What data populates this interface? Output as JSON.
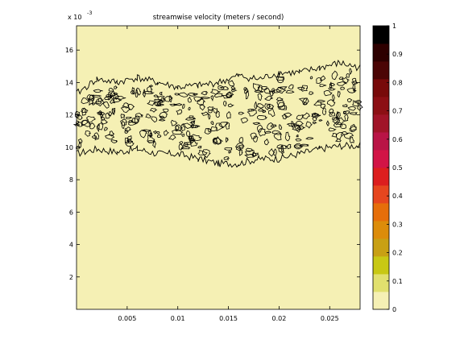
{
  "chart_data": {
    "type": "contour",
    "title": "streamwise velocity  (meters / second)",
    "xlabel": "",
    "ylabel": "",
    "xlim": [
      0,
      0.028
    ],
    "ylim": [
      0,
      17.5
    ],
    "y_multiplier_label": "x 10",
    "y_multiplier_exponent": "-3",
    "x_ticks": [
      {
        "value": 0.005,
        "label": "0.005"
      },
      {
        "value": 0.01,
        "label": "0.01"
      },
      {
        "value": 0.015,
        "label": "0.015"
      },
      {
        "value": 0.02,
        "label": "0.02"
      },
      {
        "value": 0.025,
        "label": "0.025"
      }
    ],
    "y_ticks": [
      {
        "value": 2,
        "label": "2"
      },
      {
        "value": 4,
        "label": "4"
      },
      {
        "value": 6,
        "label": "6"
      },
      {
        "value": 8,
        "label": "8"
      },
      {
        "value": 10,
        "label": "10"
      },
      {
        "value": 12,
        "label": "12"
      },
      {
        "value": 14,
        "label": "14"
      },
      {
        "value": 16,
        "label": "16"
      }
    ],
    "background_color": "#f5f0b4",
    "contour_color": "#000000",
    "band": {
      "x": [
        0,
        0.002,
        0.004,
        0.006,
        0.008,
        0.01,
        0.012,
        0.014,
        0.016,
        0.018,
        0.02,
        0.022,
        0.024,
        0.026,
        0.028
      ],
      "lower": [
        9.6,
        9.9,
        9.7,
        9.9,
        9.6,
        9.6,
        9.3,
        9.0,
        9.0,
        9.3,
        9.3,
        9.6,
        9.9,
        10.1,
        10.1
      ],
      "upper": [
        13.3,
        14.2,
        14.0,
        14.3,
        14.0,
        13.7,
        13.8,
        14.0,
        14.4,
        14.2,
        14.6,
        14.6,
        14.9,
        15.2,
        14.9
      ]
    },
    "colorbar": {
      "min": 0,
      "max": 1,
      "ticks": [
        {
          "value": 0,
          "label": "0"
        },
        {
          "value": 0.1,
          "label": "0.1"
        },
        {
          "value": 0.2,
          "label": "0.2"
        },
        {
          "value": 0.3,
          "label": "0.3"
        },
        {
          "value": 0.4,
          "label": "0.4"
        },
        {
          "value": 0.5,
          "label": "0.5"
        },
        {
          "value": 0.6,
          "label": "0.6"
        },
        {
          "value": 0.7,
          "label": "0.7"
        },
        {
          "value": 0.8,
          "label": "0.8"
        },
        {
          "value": 0.9,
          "label": "0.9"
        },
        {
          "value": 1,
          "label": "1"
        }
      ],
      "colors": [
        "#f5f0b4",
        "#e1e06e",
        "#c8c814",
        "#c8a014",
        "#dc8c0a",
        "#e66e0a",
        "#e6461e",
        "#dc1e1e",
        "#d21446",
        "#b91446",
        "#a01428",
        "#8c0f14",
        "#780a0a",
        "#4b0505",
        "#2d0000",
        "#000000"
      ]
    }
  }
}
